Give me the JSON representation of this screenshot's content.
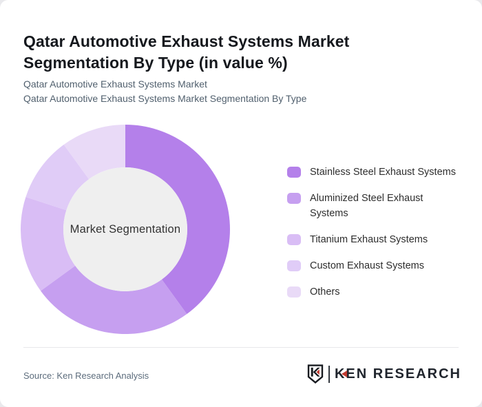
{
  "page": {
    "title": "Qatar Automotive Exhaust Systems Market Segmentation By Type (in value %)",
    "subtitle_lines": [
      "Qatar Automotive Exhaust Systems Market",
      "Qatar Automotive Exhaust Systems Market Segmentation By Type"
    ],
    "source": "Source: Ken Research Analysis"
  },
  "logo": {
    "brand": "KEN RESEARCH",
    "shield_letter": "K",
    "accent_color": "#c13b30",
    "ink_color": "#181b20"
  },
  "chart_data": {
    "type": "pie",
    "subtype": "donut",
    "title": "Qatar Automotive Exhaust Systems Market Segmentation By Type (in value %)",
    "center_label": "Market Segmentation",
    "unit": "value %",
    "categories": [
      "Stainless Steel Exhaust Systems",
      "Aluminized Steel Exhaust Systems",
      "Titanium Exhaust Systems",
      "Custom Exhaust Systems",
      "Others"
    ],
    "values": [
      40,
      25,
      15,
      10,
      10
    ],
    "values_note": "estimated from arc angles; no numeric labels shown",
    "colors": [
      "#b480ea",
      "#c69ff0",
      "#d9bdf5",
      "#e0ccf7",
      "#e9daf7"
    ],
    "hole_color": "#efefef",
    "start_angle_deg": 0,
    "direction": "clockwise",
    "legend_position": "right",
    "legend_lines": [
      [
        "Stainless Steel Exhaust Systems"
      ],
      [
        "Aluminized Steel Exhaust",
        "Systems"
      ],
      [
        "Titanium Exhaust Systems"
      ],
      [
        "Custom Exhaust Systems"
      ],
      [
        "Others"
      ]
    ]
  }
}
